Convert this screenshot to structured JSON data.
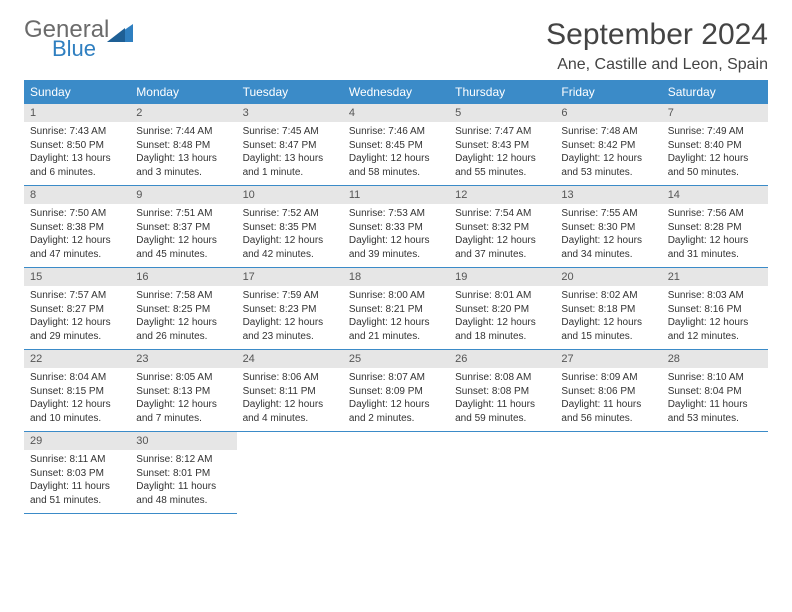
{
  "logo": {
    "primary": "General",
    "secondary": "Blue"
  },
  "title": "September 2024",
  "location": "Ane, Castille and Leon, Spain",
  "colors": {
    "header_bg": "#3b8bc8",
    "header_text": "#ffffff",
    "daynum_bg": "#e6e6e6",
    "daynum_text": "#555555",
    "body_text": "#333333",
    "border": "#3b8bc8",
    "logo_gray": "#6b6b6b",
    "logo_blue": "#2f7fc0",
    "title_color": "#444444"
  },
  "weekdays": [
    "Sunday",
    "Monday",
    "Tuesday",
    "Wednesday",
    "Thursday",
    "Friday",
    "Saturday"
  ],
  "days": [
    {
      "n": "1",
      "sunrise": "7:43 AM",
      "sunset": "8:50 PM",
      "daylight": "13 hours and 6 minutes."
    },
    {
      "n": "2",
      "sunrise": "7:44 AM",
      "sunset": "8:48 PM",
      "daylight": "13 hours and 3 minutes."
    },
    {
      "n": "3",
      "sunrise": "7:45 AM",
      "sunset": "8:47 PM",
      "daylight": "13 hours and 1 minute."
    },
    {
      "n": "4",
      "sunrise": "7:46 AM",
      "sunset": "8:45 PM",
      "daylight": "12 hours and 58 minutes."
    },
    {
      "n": "5",
      "sunrise": "7:47 AM",
      "sunset": "8:43 PM",
      "daylight": "12 hours and 55 minutes."
    },
    {
      "n": "6",
      "sunrise": "7:48 AM",
      "sunset": "8:42 PM",
      "daylight": "12 hours and 53 minutes."
    },
    {
      "n": "7",
      "sunrise": "7:49 AM",
      "sunset": "8:40 PM",
      "daylight": "12 hours and 50 minutes."
    },
    {
      "n": "8",
      "sunrise": "7:50 AM",
      "sunset": "8:38 PM",
      "daylight": "12 hours and 47 minutes."
    },
    {
      "n": "9",
      "sunrise": "7:51 AM",
      "sunset": "8:37 PM",
      "daylight": "12 hours and 45 minutes."
    },
    {
      "n": "10",
      "sunrise": "7:52 AM",
      "sunset": "8:35 PM",
      "daylight": "12 hours and 42 minutes."
    },
    {
      "n": "11",
      "sunrise": "7:53 AM",
      "sunset": "8:33 PM",
      "daylight": "12 hours and 39 minutes."
    },
    {
      "n": "12",
      "sunrise": "7:54 AM",
      "sunset": "8:32 PM",
      "daylight": "12 hours and 37 minutes."
    },
    {
      "n": "13",
      "sunrise": "7:55 AM",
      "sunset": "8:30 PM",
      "daylight": "12 hours and 34 minutes."
    },
    {
      "n": "14",
      "sunrise": "7:56 AM",
      "sunset": "8:28 PM",
      "daylight": "12 hours and 31 minutes."
    },
    {
      "n": "15",
      "sunrise": "7:57 AM",
      "sunset": "8:27 PM",
      "daylight": "12 hours and 29 minutes."
    },
    {
      "n": "16",
      "sunrise": "7:58 AM",
      "sunset": "8:25 PM",
      "daylight": "12 hours and 26 minutes."
    },
    {
      "n": "17",
      "sunrise": "7:59 AM",
      "sunset": "8:23 PM",
      "daylight": "12 hours and 23 minutes."
    },
    {
      "n": "18",
      "sunrise": "8:00 AM",
      "sunset": "8:21 PM",
      "daylight": "12 hours and 21 minutes."
    },
    {
      "n": "19",
      "sunrise": "8:01 AM",
      "sunset": "8:20 PM",
      "daylight": "12 hours and 18 minutes."
    },
    {
      "n": "20",
      "sunrise": "8:02 AM",
      "sunset": "8:18 PM",
      "daylight": "12 hours and 15 minutes."
    },
    {
      "n": "21",
      "sunrise": "8:03 AM",
      "sunset": "8:16 PM",
      "daylight": "12 hours and 12 minutes."
    },
    {
      "n": "22",
      "sunrise": "8:04 AM",
      "sunset": "8:15 PM",
      "daylight": "12 hours and 10 minutes."
    },
    {
      "n": "23",
      "sunrise": "8:05 AM",
      "sunset": "8:13 PM",
      "daylight": "12 hours and 7 minutes."
    },
    {
      "n": "24",
      "sunrise": "8:06 AM",
      "sunset": "8:11 PM",
      "daylight": "12 hours and 4 minutes."
    },
    {
      "n": "25",
      "sunrise": "8:07 AM",
      "sunset": "8:09 PM",
      "daylight": "12 hours and 2 minutes."
    },
    {
      "n": "26",
      "sunrise": "8:08 AM",
      "sunset": "8:08 PM",
      "daylight": "11 hours and 59 minutes."
    },
    {
      "n": "27",
      "sunrise": "8:09 AM",
      "sunset": "8:06 PM",
      "daylight": "11 hours and 56 minutes."
    },
    {
      "n": "28",
      "sunrise": "8:10 AM",
      "sunset": "8:04 PM",
      "daylight": "11 hours and 53 minutes."
    },
    {
      "n": "29",
      "sunrise": "8:11 AM",
      "sunset": "8:03 PM",
      "daylight": "11 hours and 51 minutes."
    },
    {
      "n": "30",
      "sunrise": "8:12 AM",
      "sunset": "8:01 PM",
      "daylight": "11 hours and 48 minutes."
    }
  ],
  "labels": {
    "sunrise": "Sunrise: ",
    "sunset": "Sunset: ",
    "daylight": "Daylight: "
  },
  "first_day_offset": 0,
  "num_days": 30
}
